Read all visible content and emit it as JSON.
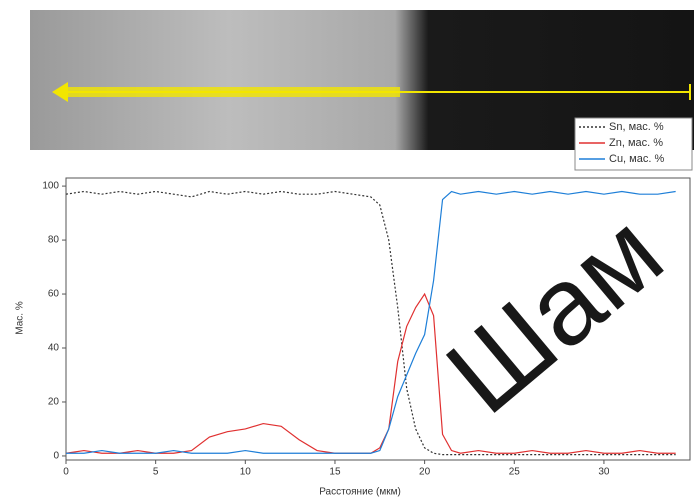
{
  "chart_data": {
    "type": "line",
    "x_label": "Расстояние (мкм)",
    "y_label": "Мас. %",
    "watermark": "Шам",
    "x": [
      0,
      1,
      2,
      3,
      4,
      5,
      6,
      7,
      8,
      9,
      10,
      11,
      12,
      13,
      14,
      15,
      16,
      17,
      17.5,
      18,
      18.5,
      19,
      19.5,
      20,
      20.5,
      21,
      21.5,
      22,
      23,
      24,
      25,
      26,
      27,
      28,
      29,
      30,
      31,
      32,
      33,
      34
    ],
    "series": [
      {
        "name": "Sn, мас. %",
        "color": "#333333",
        "dash": true,
        "values": [
          97,
          98,
          97,
          98,
          97,
          98,
          97,
          96,
          98,
          97,
          98,
          97,
          98,
          97,
          97,
          98,
          97,
          96,
          93,
          80,
          55,
          25,
          10,
          3,
          1,
          0.5,
          0.5,
          0.5,
          0.5,
          0.5,
          0.5,
          0.5,
          0.5,
          0.5,
          0.5,
          0.5,
          0.5,
          0.5,
          0.5,
          0.5
        ]
      },
      {
        "name": "Zn, мас. %",
        "color": "#e03030",
        "dash": false,
        "values": [
          1,
          2,
          1,
          1,
          2,
          1,
          1,
          2,
          7,
          9,
          10,
          12,
          11,
          6,
          2,
          1,
          1,
          1,
          3,
          10,
          35,
          48,
          55,
          60,
          52,
          8,
          2,
          1,
          2,
          1,
          1,
          2,
          1,
          1,
          2,
          1,
          1,
          2,
          1,
          1
        ]
      },
      {
        "name": "Cu, мас. %",
        "color": "#1e7fd8",
        "dash": false,
        "values": [
          1,
          1,
          2,
          1,
          1,
          1,
          2,
          1,
          1,
          1,
          2,
          1,
          1,
          1,
          1,
          1,
          1,
          1,
          2,
          10,
          22,
          30,
          38,
          45,
          65,
          95,
          98,
          97,
          98,
          97,
          98,
          97,
          98,
          97,
          98,
          97,
          98,
          97,
          97,
          98
        ]
      }
    ],
    "xlim": [
      0,
      34.8
    ],
    "ylim": [
      -1.5,
      103
    ],
    "xticks": [
      0,
      5,
      10,
      15,
      20,
      25,
      30
    ],
    "yticks": [
      0,
      20,
      40,
      60,
      80,
      100
    ]
  }
}
